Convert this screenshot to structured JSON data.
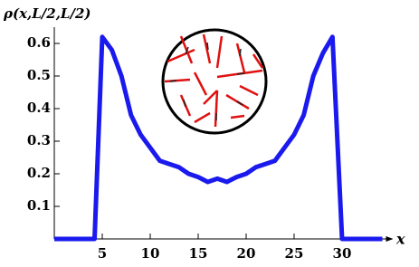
{
  "chart_data": {
    "type": "line",
    "y_label": "ρ(x,L/2,L/2)",
    "x_label": "x",
    "x": [
      0,
      4.2,
      5,
      6,
      7,
      8,
      9,
      10,
      11,
      12,
      13,
      14,
      15,
      16,
      17,
      18,
      19,
      20,
      21,
      22,
      23,
      24,
      25,
      26,
      27,
      28,
      29,
      30,
      34.2
    ],
    "values": [
      0,
      0,
      0.62,
      0.58,
      0.5,
      0.38,
      0.32,
      0.28,
      0.24,
      0.23,
      0.22,
      0.2,
      0.19,
      0.175,
      0.185,
      0.175,
      0.19,
      0.2,
      0.22,
      0.23,
      0.24,
      0.28,
      0.32,
      0.38,
      0.5,
      0.57,
      0.62,
      0,
      0
    ],
    "color": "#1a1aee",
    "xlim": [
      0,
      34.2
    ],
    "ylim": [
      0,
      0.65
    ],
    "xticks": [
      5,
      10,
      15,
      20,
      25,
      30
    ],
    "yticks": [
      0.1,
      0.2,
      0.3,
      0.4,
      0.5,
      0.6
    ]
  }
}
